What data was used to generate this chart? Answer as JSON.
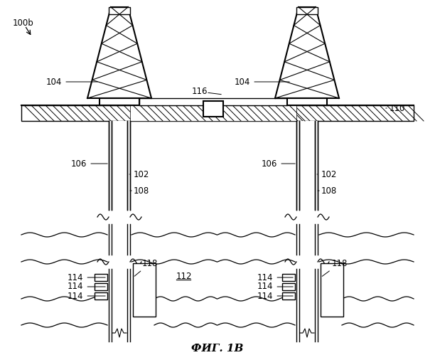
{
  "title": "ФИГ. 1В",
  "label_100b": "100b",
  "label_104": "104",
  "label_106": "106",
  "label_102": "102",
  "label_108": "108",
  "label_110": "110",
  "label_116": "116",
  "label_112": "112",
  "label_114": "114",
  "label_118": "118",
  "bg_color": "#ffffff",
  "line_color": "#000000",
  "fig_width": 6.12,
  "fig_height": 4.99,
  "dpi": 100
}
